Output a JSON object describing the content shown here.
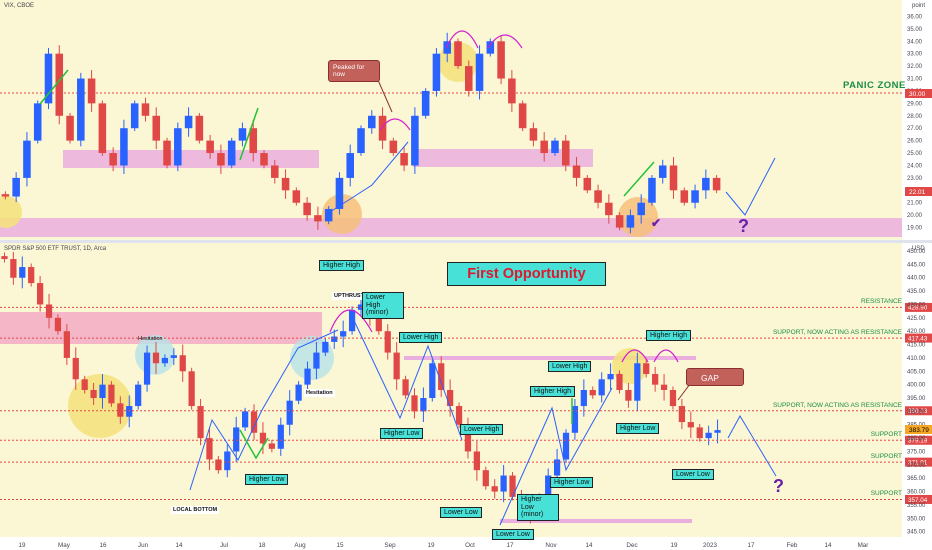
{
  "top_panel": {
    "symbol": "VIX, CBOE",
    "unit_label": "point",
    "panic_label": "PANIC ZONE",
    "peak_note": "Peaked for now",
    "question": "?",
    "check": "✔",
    "current_price": "22.01",
    "panic_price": "30.00"
  },
  "bottom_panel": {
    "symbol": "SPDR S&P 500 ETF TRUST, 1D, Arca",
    "unit_label": "USD",
    "title_box": "First Opportunity",
    "gap_note": "GAP",
    "question": "?",
    "current_price": "383.79",
    "lines": [
      {
        "label": "RESISTANCE",
        "price": "428.90"
      },
      {
        "label": "SUPPORT, NOW ACTING AS RESISTANCE",
        "price": "417.43"
      },
      {
        "label": "SUPPORT, NOW ACTING AS RESISTANCE",
        "price": "390.23"
      },
      {
        "label": "SUPPORT",
        "price": "379.19"
      },
      {
        "label": "SUPPORT",
        "price": "371.01"
      },
      {
        "label": "SUPPORT",
        "price": "357.04"
      }
    ],
    "annotations": {
      "higher_high_top": "Higher High",
      "upthrust": "UPTHRUST",
      "lower_high_minor": "Lower High (minor)",
      "hesitation_1": "Hesitation",
      "hesitation_2": "Hesitation",
      "lower_high_sep": "Lower High",
      "higher_high_dec": "Higher High",
      "lower_high_nov": "Lower High",
      "higher_high_nov": "Higher High",
      "higher_low_jul": "Higher Low",
      "local_bottom": "LOCAL BOTTOM",
      "higher_low_sep": "Higher Low",
      "lower_high_oct": "Lower High",
      "lower_low_oct": "Lower Low",
      "lower_low_oct2": "Lower Low",
      "higher_low_minor": "Higher Low (minor)",
      "higher_low_nov": "Higher Low",
      "higher_low_dec": "Higher Low",
      "lower_low_dec": "Lower Low"
    }
  },
  "time_axis": [
    "19",
    "May",
    "16",
    "Jun",
    "14",
    "Jul",
    "18",
    "Aug",
    "15",
    "Sep",
    "19",
    "Oct",
    "17",
    "Nov",
    "14",
    "Dec",
    "19",
    "2023",
    "17",
    "Feb",
    "14",
    "Mar"
  ],
  "chart_data": [
    {
      "type": "candlestick",
      "title": "VIX, CBOE",
      "ylabel": "point",
      "ylim": [
        18,
        37
      ],
      "y_ticks": [
        19,
        20,
        21,
        22,
        23,
        24,
        25,
        26,
        27,
        28,
        29,
        30,
        31,
        32,
        33,
        34,
        35,
        36
      ],
      "grid": false,
      "levels": [
        {
          "label": "PANIC ZONE",
          "value": 30.0
        }
      ],
      "last_value": 22.01,
      "series_close_estimate": [
        21.5,
        23,
        26,
        29,
        33,
        28,
        26,
        31,
        29,
        25,
        24,
        27,
        29,
        28,
        26,
        24,
        27,
        28,
        26,
        25,
        24,
        26,
        27,
        25,
        24,
        23,
        22,
        21,
        20,
        19.5,
        20.5,
        23,
        25,
        27,
        28,
        26,
        25,
        24,
        28,
        30,
        33,
        34,
        32,
        30,
        33,
        34,
        31,
        29,
        27,
        26,
        25,
        26,
        24,
        23,
        22,
        21,
        20,
        19,
        20,
        21,
        23,
        24,
        22,
        21,
        22,
        23,
        22
      ]
    },
    {
      "type": "candlestick",
      "title": "SPDR S&P 500 ETF TRUST, 1D, Arca",
      "ylabel": "USD",
      "ylim": [
        343,
        453
      ],
      "y_ticks": [
        345,
        350,
        355,
        360,
        365,
        370,
        375,
        380,
        385,
        390,
        395,
        400,
        405,
        410,
        415,
        420,
        425,
        430,
        435,
        440,
        445,
        450
      ],
      "grid": false,
      "levels": [
        {
          "label": "RESISTANCE",
          "value": 428.9
        },
        {
          "label": "SUPPORT, NOW ACTING AS RESISTANCE",
          "value": 417.43
        },
        {
          "label": "SUPPORT, NOW ACTING AS RESISTANCE",
          "value": 390.23
        },
        {
          "label": "SUPPORT",
          "value": 379.19
        },
        {
          "label": "SUPPORT",
          "value": 371.01
        },
        {
          "label": "SUPPORT",
          "value": 357.04
        }
      ],
      "last_value": 383.79,
      "series_close_estimate": [
        447,
        440,
        444,
        438,
        430,
        425,
        420,
        410,
        402,
        398,
        395,
        400,
        393,
        388,
        392,
        400,
        412,
        408,
        410,
        411,
        405,
        392,
        380,
        372,
        368,
        375,
        384,
        390,
        382,
        378,
        376,
        385,
        394,
        400,
        406,
        412,
        416,
        418,
        420,
        428,
        430,
        426,
        420,
        412,
        402,
        396,
        390,
        395,
        408,
        398,
        392,
        385,
        375,
        368,
        362,
        360,
        366,
        358,
        354,
        352,
        358,
        366,
        372,
        382,
        392,
        398,
        396,
        402,
        404,
        398,
        394,
        408,
        404,
        400,
        398,
        392,
        386,
        384,
        380,
        382,
        383
      ]
    }
  ]
}
